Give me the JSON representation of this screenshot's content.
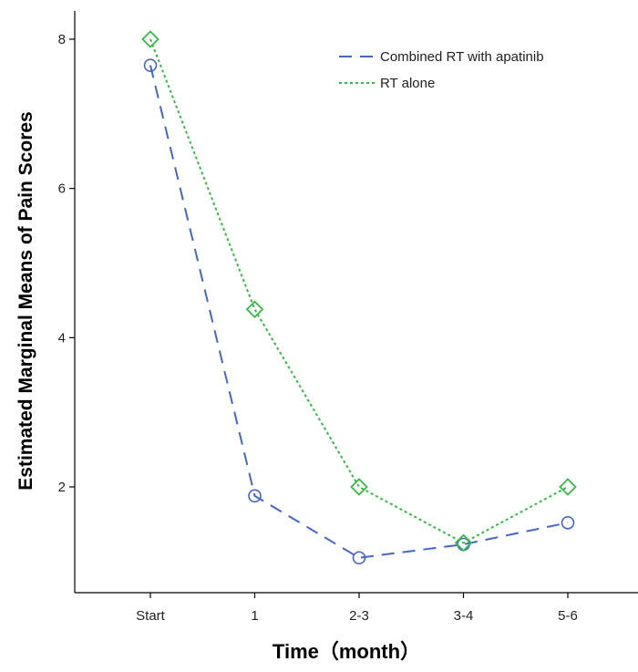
{
  "chart_data": {
    "type": "line",
    "title": "",
    "xlabel": "Time（month）",
    "ylabel": "Estimated Marginal Means of Pain Scores",
    "categories": [
      "Start",
      "1",
      "2-3",
      "3-4",
      "5-6"
    ],
    "yticks": [
      "2",
      "4",
      "6",
      "8"
    ],
    "ylim": [
      0.7,
      8.4
    ],
    "grid": false,
    "legend_position": "top-right",
    "series": [
      {
        "name": "Combined RT with apatinib",
        "values": [
          7.65,
          1.88,
          1.05,
          1.23,
          1.52
        ],
        "color": "#4466cc",
        "line_style": "dashed",
        "marker": "circle"
      },
      {
        "name": "RT alone",
        "values": [
          8.0,
          4.38,
          2.0,
          1.25,
          2.0
        ],
        "color": "#33bb44",
        "line_style": "dotted",
        "marker": "diamond"
      }
    ]
  }
}
